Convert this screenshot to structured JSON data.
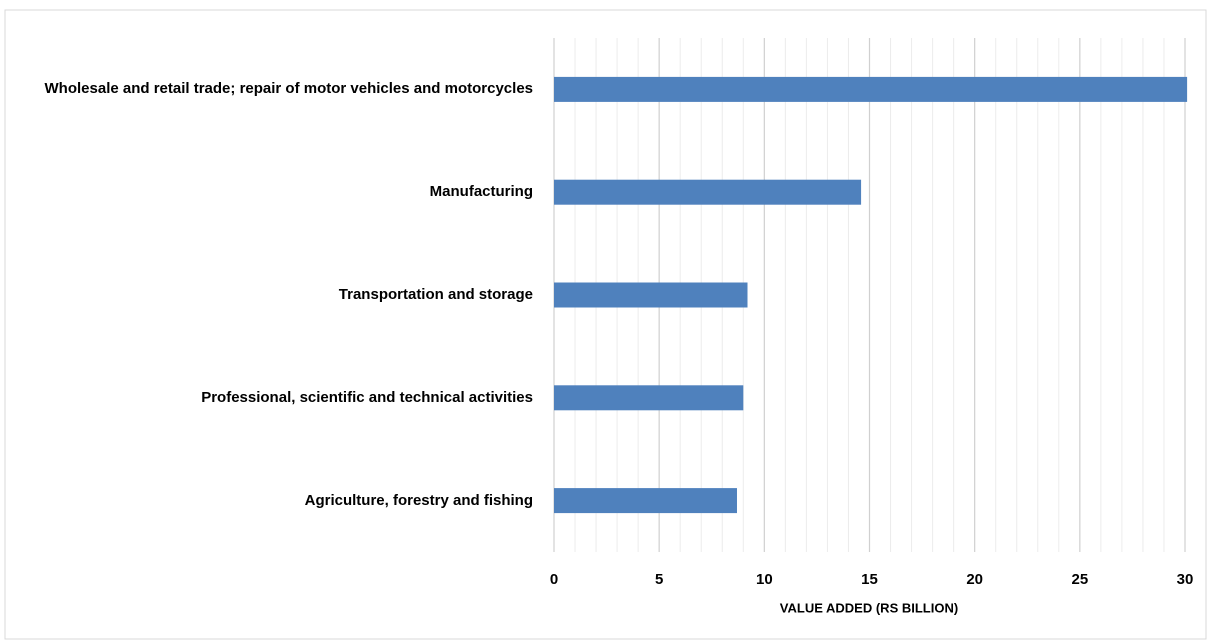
{
  "chart_data": {
    "type": "bar",
    "orientation": "horizontal",
    "x_label": "VALUE ADDED (RS BILLION)",
    "categories": [
      "Wholesale and retail trade; repair of motor vehicles and motorcycles",
      "Manufacturing",
      "Transportation and storage",
      "Professional, scientific and technical activities",
      "Agriculture, forestry and fishing"
    ],
    "values": [
      30.1,
      14.6,
      9.2,
      9.0,
      8.7
    ],
    "color": "#4f81bd",
    "xlim": [
      0,
      30
    ],
    "xticks": [
      0,
      5,
      10,
      15,
      20,
      25,
      30
    ],
    "grid": true,
    "minor_grid": true
  }
}
